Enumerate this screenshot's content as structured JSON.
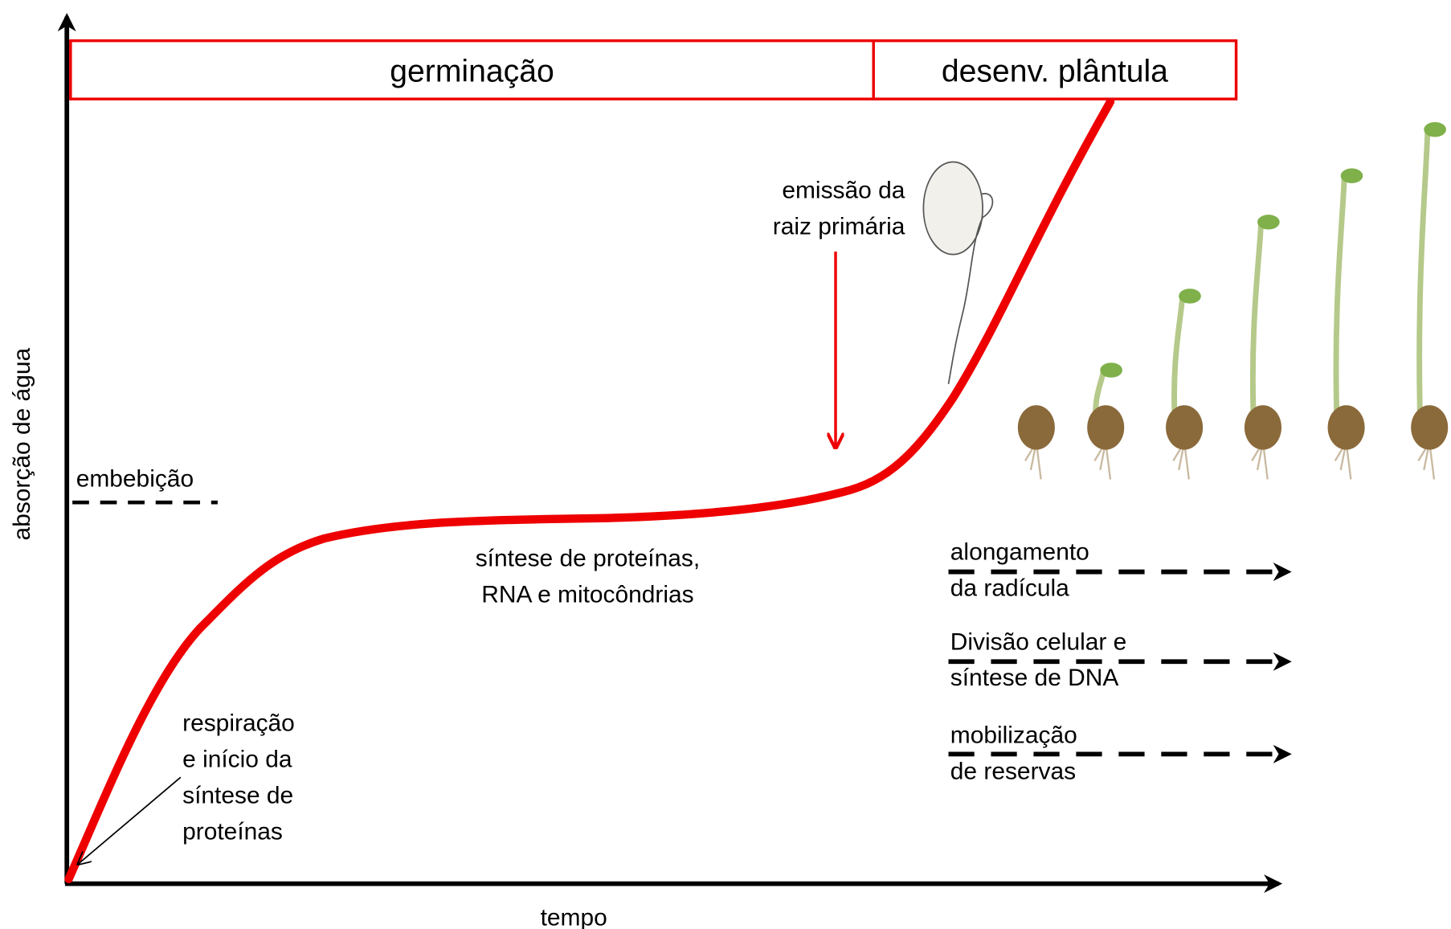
{
  "phases": [
    "germinação",
    "desenv. plântula"
  ],
  "axes": {
    "y": "absorção de água",
    "x": "tempo"
  },
  "threshold": "embebição",
  "annotations": {
    "radicle_emergence": [
      "emissão da",
      "raiz primária"
    ],
    "protein_synthesis": [
      "síntese de proteínas,",
      "RNA e mitocôndrias"
    ],
    "respiration": [
      "respiração",
      "e início da",
      "síntese de",
      "proteínas"
    ]
  },
  "processes": [
    [
      "alongamento",
      "da radícula"
    ],
    [
      "Divisão celular e",
      "síntese de DNA"
    ],
    [
      "mobilização",
      "de reservas"
    ]
  ]
}
